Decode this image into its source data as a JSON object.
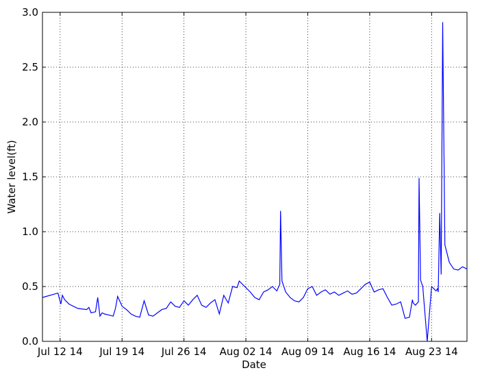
{
  "chart_data": {
    "type": "line",
    "title": "",
    "xlabel": "Date",
    "ylabel": "Water level(ft)",
    "ylim": [
      0.0,
      3.0
    ],
    "yticks": [
      "0.0",
      "0.5",
      "1.0",
      "1.5",
      "2.0",
      "2.5",
      "3.0"
    ],
    "yticks_values": [
      0.0,
      0.5,
      1.0,
      1.5,
      2.0,
      2.5,
      3.0
    ],
    "xlim": [
      "2014-07-10",
      "2014-08-27"
    ],
    "xticks": [
      "Jul 12 14",
      "Jul 19 14",
      "Jul 26 14",
      "Aug 02 14",
      "Aug 09 14",
      "Aug 16 14",
      "Aug 23 14"
    ],
    "xticks_values": [
      "2014-07-12",
      "2014-07-19",
      "2014-07-26",
      "2014-08-02",
      "2014-08-09",
      "2014-08-16",
      "2014-08-23"
    ],
    "grid": true,
    "line_color": "#0000ff",
    "series": [
      {
        "x": [
          "2014-07-10 00:00",
          "2014-07-11 18:00",
          "2014-07-12 02:00",
          "2014-07-12 06:00",
          "2014-07-12 12:00",
          "2014-07-13 00:00",
          "2014-07-14 00:00",
          "2014-07-15 00:00",
          "2014-07-15 06:00",
          "2014-07-15 12:00",
          "2014-07-16 00:00",
          "2014-07-16 06:00",
          "2014-07-16 12:00",
          "2014-07-16 18:00",
          "2014-07-17 00:00",
          "2014-07-17 12:00",
          "2014-07-18 00:00",
          "2014-07-18 06:00",
          "2014-07-18 12:00",
          "2014-07-19 00:00",
          "2014-07-19 12:00",
          "2014-07-20 00:00",
          "2014-07-20 12:00",
          "2014-07-21 00:00",
          "2014-07-21 12:00",
          "2014-07-22 00:00",
          "2014-07-22 12:00",
          "2014-07-23 00:00",
          "2014-07-23 12:00",
          "2014-07-24 00:00",
          "2014-07-24 12:00",
          "2014-07-25 00:00",
          "2014-07-25 12:00",
          "2014-07-26 00:00",
          "2014-07-26 12:00",
          "2014-07-27 00:00",
          "2014-07-27 12:00",
          "2014-07-28 00:00",
          "2014-07-28 12:00",
          "2014-07-29 00:00",
          "2014-07-29 12:00",
          "2014-07-30 00:00",
          "2014-07-30 12:00",
          "2014-07-31 00:00",
          "2014-07-31 12:00",
          "2014-08-01 00:00",
          "2014-08-01 06:00",
          "2014-08-02 12:00",
          "2014-08-03 00:00",
          "2014-08-03 12:00",
          "2014-08-04 00:00",
          "2014-08-04 12:00",
          "2014-08-05 00:00",
          "2014-08-05 12:00",
          "2014-08-05 20:00",
          "2014-08-05 22:00",
          "2014-08-06 02:00",
          "2014-08-06 12:00",
          "2014-08-07 00:00",
          "2014-08-07 12:00",
          "2014-08-08 00:00",
          "2014-08-08 12:00",
          "2014-08-09 00:00",
          "2014-08-09 12:00",
          "2014-08-10 00:00",
          "2014-08-10 12:00",
          "2014-08-11 00:00",
          "2014-08-11 12:00",
          "2014-08-12 00:00",
          "2014-08-12 12:00",
          "2014-08-13 00:00",
          "2014-08-13 12:00",
          "2014-08-14 00:00",
          "2014-08-14 12:00",
          "2014-08-15 00:00",
          "2014-08-15 12:00",
          "2014-08-16 00:00",
          "2014-08-16 12:00",
          "2014-08-17 00:00",
          "2014-08-17 12:00",
          "2014-08-18 00:00",
          "2014-08-18 12:00",
          "2014-08-19 00:00",
          "2014-08-19 12:00",
          "2014-08-20 00:00",
          "2014-08-20 12:00",
          "2014-08-20 20:00",
          "2014-08-20 22:00",
          "2014-08-21 04:00",
          "2014-08-21 12:00",
          "2014-08-21 14:00",
          "2014-08-21 18:00",
          "2014-08-22 00:00",
          "2014-08-22 12:00",
          "2014-08-23 00:00",
          "2014-08-23 12:00",
          "2014-08-23 16:00",
          "2014-08-23 18:00",
          "2014-08-23 22:00",
          "2014-08-24 02:00",
          "2014-08-24 06:00",
          "2014-08-24 12:00",
          "2014-08-25 00:00",
          "2014-08-25 12:00",
          "2014-08-26 00:00",
          "2014-08-26 12:00",
          "2014-08-27 00:00"
        ],
        "y": [
          0.4,
          0.44,
          0.34,
          0.42,
          0.38,
          0.34,
          0.3,
          0.29,
          0.31,
          0.26,
          0.27,
          0.4,
          0.23,
          0.26,
          0.25,
          0.24,
          0.23,
          0.3,
          0.41,
          0.32,
          0.29,
          0.25,
          0.23,
          0.22,
          0.37,
          0.24,
          0.23,
          0.26,
          0.29,
          0.3,
          0.36,
          0.32,
          0.31,
          0.37,
          0.33,
          0.38,
          0.42,
          0.33,
          0.31,
          0.35,
          0.38,
          0.25,
          0.42,
          0.35,
          0.5,
          0.49,
          0.55,
          0.45,
          0.4,
          0.38,
          0.45,
          0.47,
          0.5,
          0.46,
          0.52,
          1.19,
          0.55,
          0.45,
          0.4,
          0.37,
          0.36,
          0.4,
          0.48,
          0.5,
          0.42,
          0.45,
          0.47,
          0.43,
          0.45,
          0.42,
          0.44,
          0.46,
          0.43,
          0.44,
          0.48,
          0.52,
          0.54,
          0.45,
          0.47,
          0.48,
          0.4,
          0.33,
          0.34,
          0.36,
          0.21,
          0.22,
          0.38,
          0.35,
          0.33,
          0.36,
          1.49,
          0.56,
          0.5,
          0.0,
          0.5,
          0.46,
          0.48,
          0.45,
          1.17,
          0.61,
          2.91,
          0.88,
          0.72,
          0.66,
          0.65,
          0.68,
          0.66
        ]
      }
    ]
  }
}
